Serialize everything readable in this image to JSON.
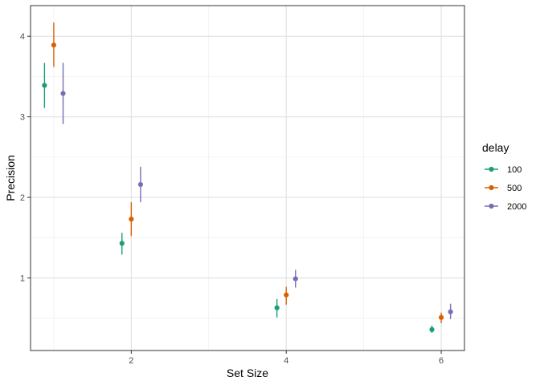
{
  "chart_data": {
    "type": "scatter",
    "xlabel": "Set Size",
    "ylabel": "Precision",
    "xlim": [
      0.7,
      6.3
    ],
    "ylim": [
      0.1,
      4.38
    ],
    "x_ticks": [
      2,
      4,
      6
    ],
    "x_tick_labels": [
      "2",
      "4",
      "6"
    ],
    "x_minor_ticks": [
      1,
      3,
      5
    ],
    "y_ticks": [
      1,
      2,
      3,
      4
    ],
    "y_tick_labels": [
      "1",
      "2",
      "3",
      "4"
    ],
    "y_minor_ticks": [
      0.5,
      1.5,
      2.5,
      3.5
    ],
    "grid": true,
    "legend": {
      "title": "delay",
      "position": "right"
    },
    "dodge": 0.12,
    "series": [
      {
        "name": "100",
        "color": "#1b9e77",
        "x": [
          1,
          2,
          4,
          6
        ],
        "y": [
          3.39,
          1.43,
          0.63,
          0.36
        ],
        "ymin": [
          3.11,
          1.29,
          0.51,
          0.32
        ],
        "ymax": [
          3.67,
          1.56,
          0.74,
          0.41
        ]
      },
      {
        "name": "500",
        "color": "#d95f02",
        "x": [
          1,
          2,
          4,
          6
        ],
        "y": [
          3.89,
          1.73,
          0.79,
          0.51
        ],
        "ymin": [
          3.62,
          1.52,
          0.67,
          0.44
        ],
        "ymax": [
          4.17,
          1.94,
          0.89,
          0.57
        ]
      },
      {
        "name": "2000",
        "color": "#7570b3",
        "x": [
          1,
          2,
          4,
          6
        ],
        "y": [
          3.29,
          2.16,
          0.99,
          0.58
        ],
        "ymin": [
          2.91,
          1.94,
          0.88,
          0.49
        ],
        "ymax": [
          3.67,
          2.38,
          1.1,
          0.68
        ]
      }
    ]
  }
}
